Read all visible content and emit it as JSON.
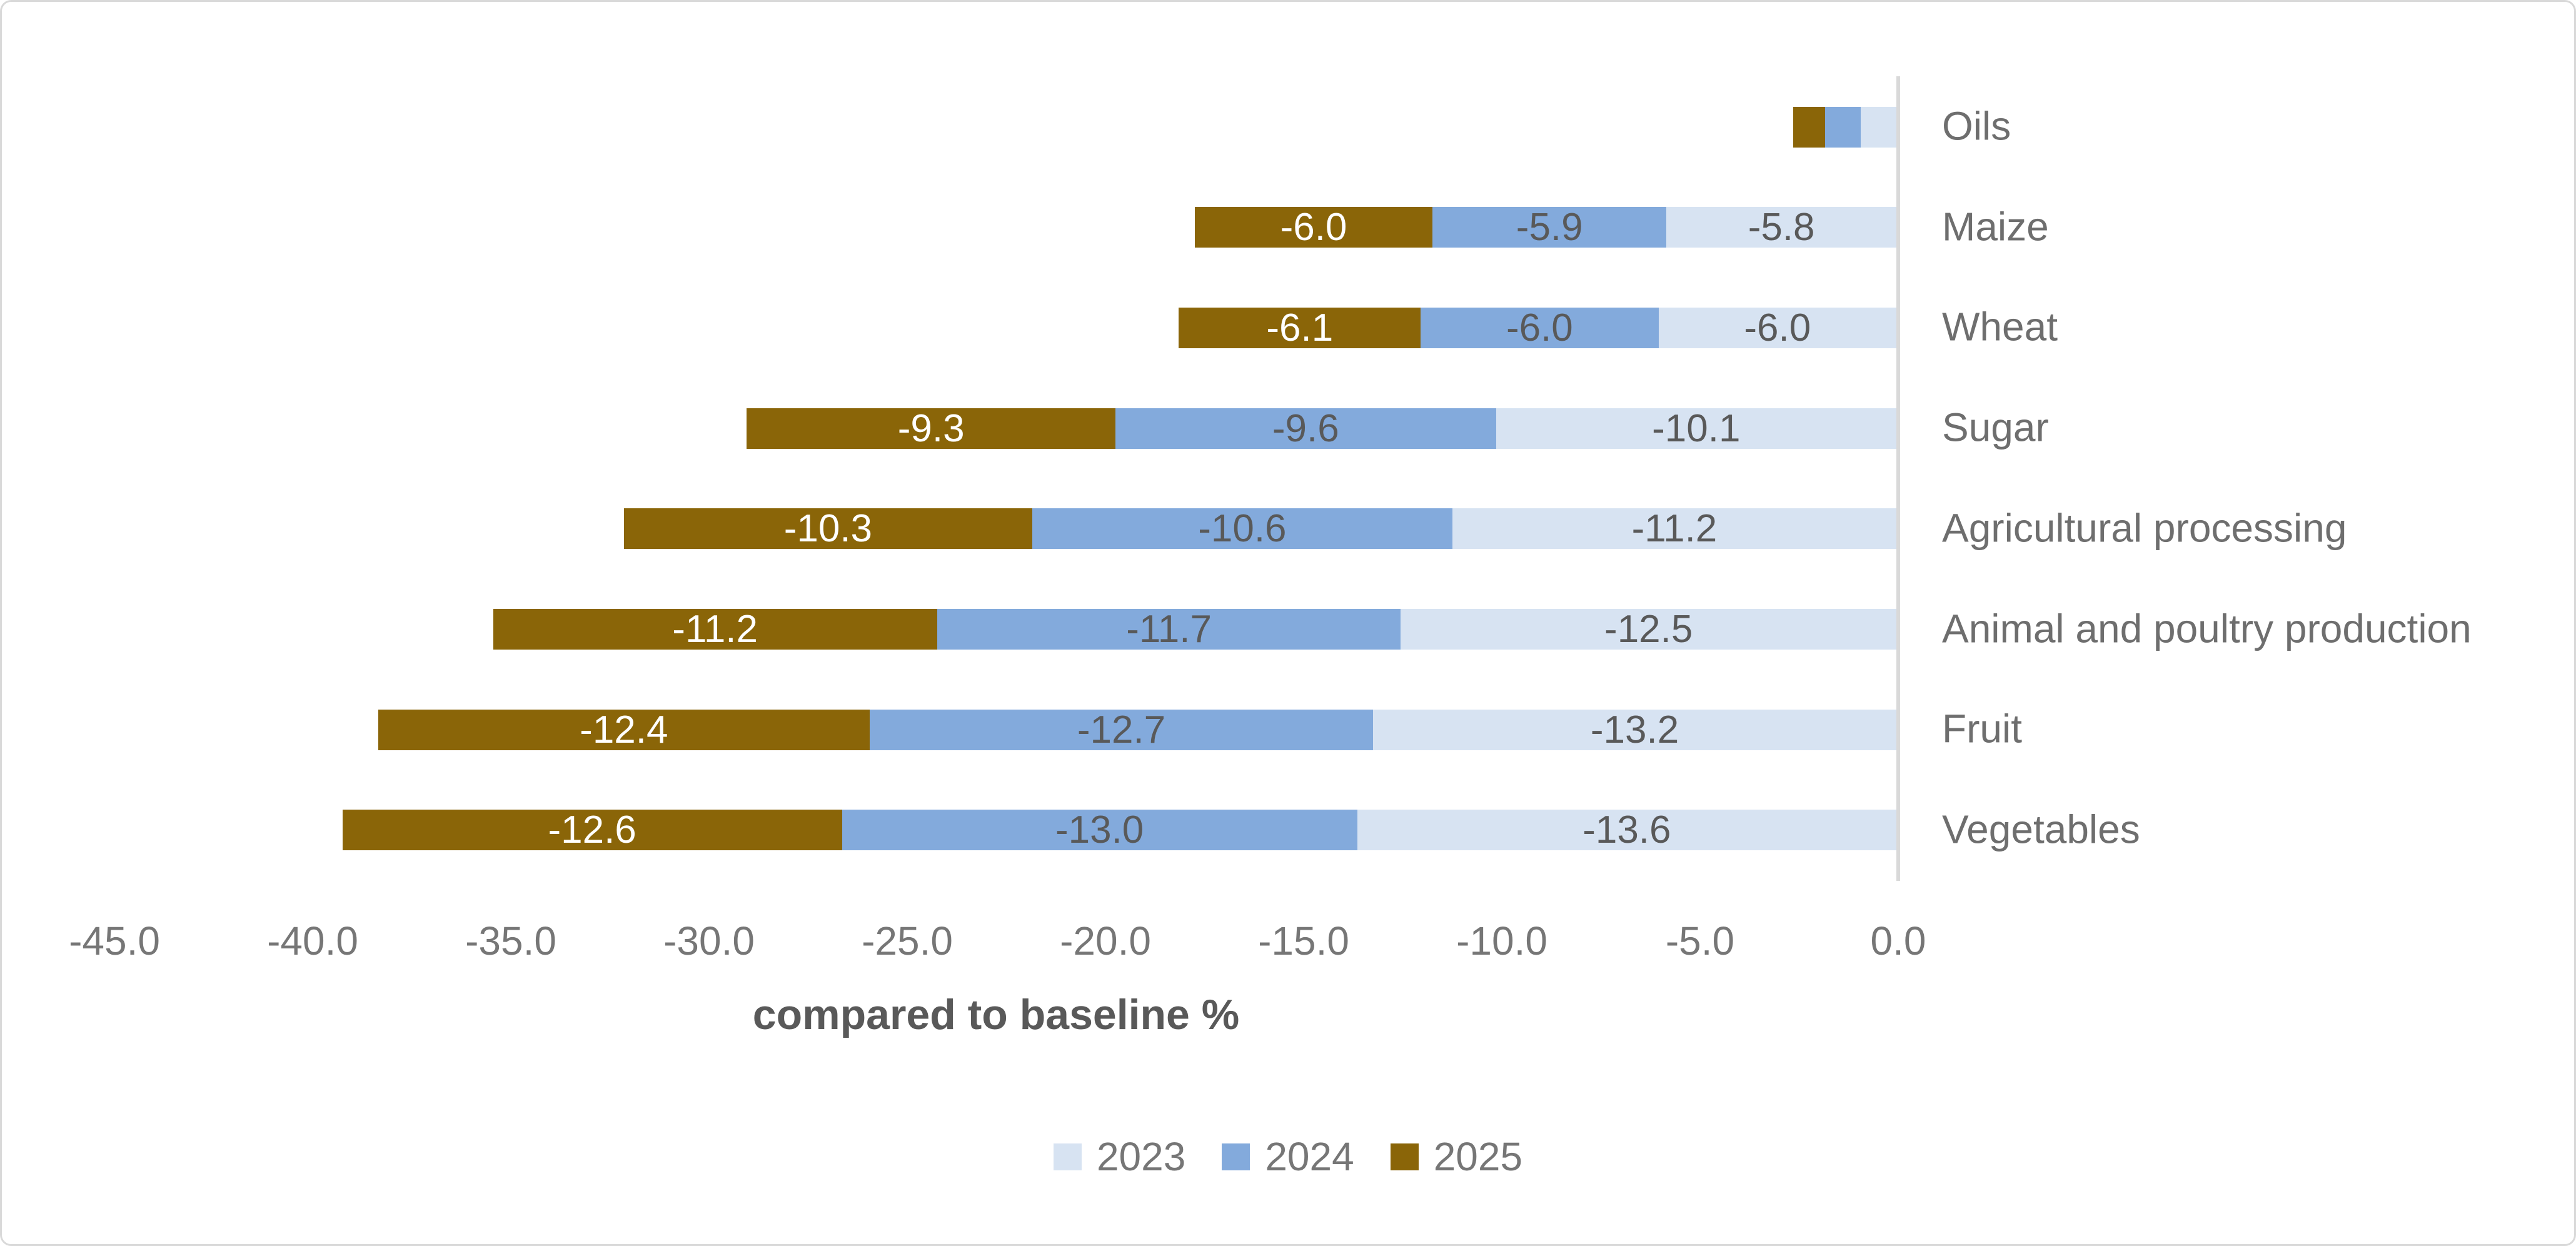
{
  "chart_data": {
    "type": "bar",
    "orientation": "horizontal",
    "stacked": true,
    "categories": [
      "Oils",
      "Maize",
      "Wheat",
      "Sugar",
      "Agricultural processing",
      "Animal and poultry production",
      "Fruit",
      "Vegetables"
    ],
    "series": [
      {
        "name": "2023",
        "color": "#d7e3f2",
        "label_color": "#595959",
        "values": [
          -0.9,
          -5.8,
          -6.0,
          -10.1,
          -11.2,
          -12.5,
          -13.2,
          -13.6
        ]
      },
      {
        "name": "2024",
        "color": "#83aadc",
        "label_color": "#595959",
        "values": [
          -0.9,
          -5.9,
          -6.0,
          -9.6,
          -10.6,
          -11.7,
          -12.7,
          -13.0
        ]
      },
      {
        "name": "2025",
        "color": "#8a6508",
        "label_color": "#ffffff",
        "values": [
          -0.8,
          -6.0,
          -6.1,
          -9.3,
          -10.3,
          -11.2,
          -12.4,
          -12.6
        ]
      }
    ],
    "stack_order_left_to_right": [
      "2025",
      "2024",
      "2023"
    ],
    "data_labels_hidden_for_categories": [
      "Oils"
    ],
    "data_label_format": "one_decimal",
    "xlabel": "compared to baseline %",
    "xlim": [
      -45.0,
      0.0
    ],
    "xtick_labels": [
      "-45.0",
      "-40.0",
      "-35.0",
      "-30.0",
      "-25.0",
      "-20.0",
      "-15.0",
      "-10.0",
      "-5.0",
      "0.0"
    ],
    "grid": false,
    "legend": {
      "position": "bottom",
      "entries": [
        "2023",
        "2024",
        "2025"
      ]
    }
  },
  "colors": {
    "frame_border": "#d9d9d9",
    "axis_line": "#d9d9d9",
    "tick_text": "#767676",
    "category_text": "#6e6e6e",
    "legend_text": "#767676",
    "axis_title_text": "#595959",
    "background": "#ffffff"
  }
}
